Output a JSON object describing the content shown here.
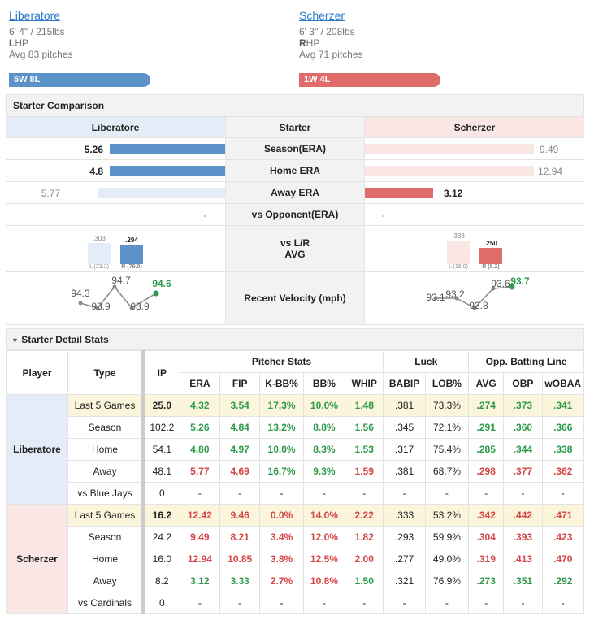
{
  "left": {
    "name": "Liberatore",
    "height_weight": "6' 4\" / 215lbs",
    "hand_letter": "L",
    "hand_rest": "HP",
    "avg_pitches": "Avg 83 pitches",
    "record": "5W 8L",
    "color": "#5b92c8"
  },
  "right": {
    "name": "Scherzer",
    "height_weight": "6' 3\" / 208lbs",
    "hand_letter": "R",
    "hand_rest": "HP",
    "avg_pitches": "Avg 71 pitches",
    "record": "1W 4L",
    "color": "#e06b6b"
  },
  "comparison": {
    "title": "Starter Comparison",
    "header_left": "Liberatore",
    "header_mid": "Starter",
    "header_right": "Scherzer",
    "rows": [
      {
        "label": "Season(ERA)",
        "left": "5.26",
        "right": "9.49"
      },
      {
        "label": "Home ERA",
        "left": "4.8",
        "right": "12.94"
      },
      {
        "label": "Away ERA",
        "left": "5.77",
        "right": "3.12"
      },
      {
        "label": "vs Opponent(ERA)",
        "left": "-",
        "right": "-"
      }
    ],
    "lr_label_1": "vs L/R",
    "lr_label_2": "AVG",
    "lr_left": {
      "l_val": ".303",
      "r_val": ".294",
      "l_tag": "L (23.2)",
      "r_tag": "R (79.0)"
    },
    "lr_right": {
      "l_val": ".333",
      "r_val": ".250",
      "l_tag": "L (16.0)",
      "r_tag": "R (8.2)"
    },
    "velo_label": "Recent Velocity (mph)",
    "velo_left": {
      "values": [
        "94.3",
        "93.9",
        "94.7",
        "93.9",
        "94.6"
      ]
    },
    "velo_right": {
      "values": [
        "93.1",
        "93.2",
        "92.8",
        "93.6",
        "93.7"
      ]
    }
  },
  "detail": {
    "title": "Starter Detail Stats",
    "head": {
      "player": "Player",
      "type": "Type",
      "ip": "IP",
      "pitcher_stats": "Pitcher Stats",
      "luck": "Luck",
      "opp": "Opp. Batting Line",
      "cols": [
        "ERA",
        "FIP",
        "K-BB%",
        "BB%",
        "WHIP",
        "BABIP",
        "LOB%",
        "AVG",
        "OBP",
        "wOBAA"
      ]
    },
    "players": [
      {
        "name": "Liberatore",
        "rows": [
          {
            "type": "Last 5 Games",
            "ip": "25.0",
            "v": [
              "4.32",
              "3.54",
              "17.3%",
              "10.0%",
              "1.48",
              ".381",
              "73.3%",
              ".274",
              ".373",
              ".341"
            ],
            "c": [
              "g",
              "g",
              "g",
              "g",
              "g",
              "",
              "",
              "g",
              "g",
              "g"
            ]
          },
          {
            "type": "Season",
            "ip": "102.2",
            "v": [
              "5.26",
              "4.84",
              "13.2%",
              "8.8%",
              "1.56",
              ".345",
              "72.1%",
              ".291",
              ".360",
              ".366"
            ],
            "c": [
              "g",
              "g",
              "g",
              "g",
              "g",
              "",
              "",
              "g",
              "g",
              "g"
            ]
          },
          {
            "type": "Home",
            "ip": "54.1",
            "v": [
              "4.80",
              "4.97",
              "10.0%",
              "8.3%",
              "1.53",
              ".317",
              "75.4%",
              ".285",
              ".344",
              ".338"
            ],
            "c": [
              "g",
              "g",
              "g",
              "g",
              "g",
              "",
              "",
              "g",
              "g",
              "g"
            ]
          },
          {
            "type": "Away",
            "ip": "48.1",
            "v": [
              "5.77",
              "4.69",
              "16.7%",
              "9.3%",
              "1.59",
              ".381",
              "68.7%",
              ".298",
              ".377",
              ".362"
            ],
            "c": [
              "r",
              "r",
              "g",
              "g",
              "r",
              "",
              "",
              "r",
              "r",
              "r"
            ]
          },
          {
            "type": "vs Blue Jays",
            "ip": "0",
            "v": [
              "-",
              "-",
              "-",
              "-",
              "-",
              "-",
              "-",
              "-",
              "-",
              "-"
            ],
            "c": [
              "",
              "",
              "",
              "",
              "",
              "",
              "",
              "",
              "",
              ""
            ]
          }
        ]
      },
      {
        "name": "Scherzer",
        "rows": [
          {
            "type": "Last 5 Games",
            "ip": "16.2",
            "v": [
              "12.42",
              "9.46",
              "0.0%",
              "14.0%",
              "2.22",
              ".333",
              "53.2%",
              ".342",
              ".442",
              ".471"
            ],
            "c": [
              "r",
              "r",
              "r",
              "r",
              "r",
              "",
              "",
              "r",
              "r",
              "r"
            ]
          },
          {
            "type": "Season",
            "ip": "24.2",
            "v": [
              "9.49",
              "8.21",
              "3.4%",
              "12.0%",
              "1.82",
              ".293",
              "59.9%",
              ".304",
              ".393",
              ".423"
            ],
            "c": [
              "r",
              "r",
              "r",
              "r",
              "r",
              "",
              "",
              "r",
              "r",
              "r"
            ]
          },
          {
            "type": "Home",
            "ip": "16.0",
            "v": [
              "12.94",
              "10.85",
              "3.8%",
              "12.5%",
              "2.00",
              ".277",
              "49.0%",
              ".319",
              ".413",
              ".470"
            ],
            "c": [
              "r",
              "r",
              "r",
              "r",
              "r",
              "",
              "",
              "r",
              "r",
              "r"
            ]
          },
          {
            "type": "Away",
            "ip": "8.2",
            "v": [
              "3.12",
              "3.33",
              "2.7%",
              "10.8%",
              "1.50",
              ".321",
              "76.9%",
              ".273",
              ".351",
              ".292"
            ],
            "c": [
              "g",
              "g",
              "r",
              "r",
              "g",
              "",
              "",
              "g",
              "g",
              "g"
            ]
          },
          {
            "type": "vs Cardinals",
            "ip": "0",
            "v": [
              "-",
              "-",
              "-",
              "-",
              "-",
              "-",
              "-",
              "-",
              "-",
              "-"
            ],
            "c": [
              "",
              "",
              "",
              "",
              "",
              "",
              "",
              "",
              "",
              ""
            ]
          }
        ]
      }
    ]
  }
}
